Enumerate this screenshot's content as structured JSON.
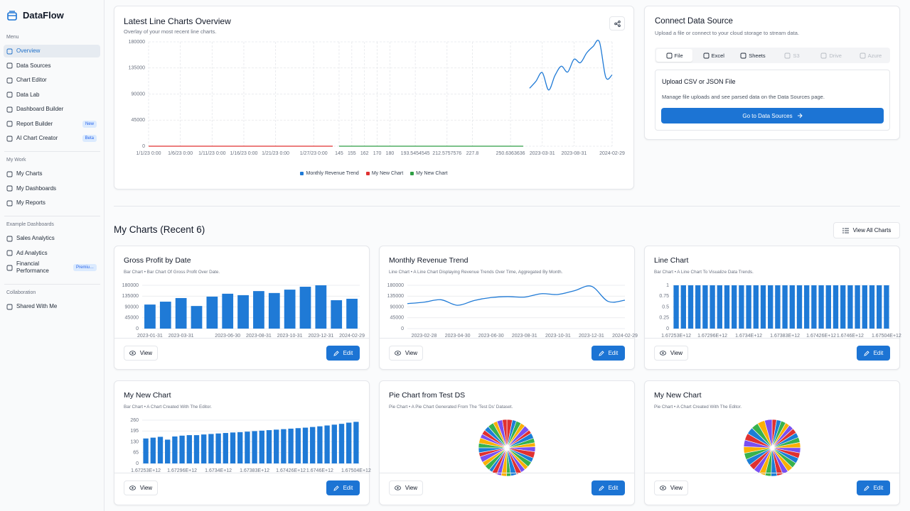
{
  "sidebar": {
    "brand": "DataFlow",
    "sections": [
      {
        "title": "Menu",
        "items": [
          {
            "label": "Overview",
            "active": true
          },
          {
            "label": "Data Sources"
          },
          {
            "label": "Chart Editor"
          },
          {
            "label": "Data Lab"
          },
          {
            "label": "Dashboard Builder"
          },
          {
            "label": "Report Builder",
            "badge": "New"
          },
          {
            "label": "AI Chart Creator",
            "badge": "Beta"
          }
        ]
      },
      {
        "title": "My Work",
        "items": [
          {
            "label": "My Charts"
          },
          {
            "label": "My Dashboards"
          },
          {
            "label": "My Reports"
          }
        ]
      },
      {
        "title": "Example Dashboards",
        "items": [
          {
            "label": "Sales Analytics"
          },
          {
            "label": "Ad Analytics"
          },
          {
            "label": "Financial Performance",
            "badge": "Premiu…"
          }
        ]
      },
      {
        "title": "Collaboration",
        "items": [
          {
            "label": "Shared With Me"
          }
        ]
      }
    ]
  },
  "overview": {
    "title": "Latest Line Charts Overview",
    "subtitle": "Overlay of your most recent line charts.",
    "chart": {
      "type": "line",
      "grid": true,
      "legend": "bottom",
      "ylim": [
        0,
        180000
      ],
      "yticks": [
        0,
        45000,
        90000,
        135000,
        180000
      ],
      "categories": [
        "1/1/23 0:00",
        null,
        null,
        null,
        null,
        "1/6/23 0:00",
        null,
        null,
        null,
        null,
        "1/11/23 0:00",
        null,
        null,
        null,
        null,
        "1/16/23 0:00",
        null,
        null,
        null,
        null,
        "1/21/23 0:00",
        null,
        null,
        null,
        null,
        null,
        "1/27/23 0:00",
        null,
        null,
        null,
        "145",
        null,
        "155",
        null,
        "162",
        null,
        "170",
        null,
        "180",
        null,
        null,
        null,
        "193.5454545",
        null,
        null,
        null,
        null,
        "212.5757576",
        null,
        null,
        null,
        "227.8",
        null,
        null,
        null,
        null,
        null,
        "250.6363636",
        null,
        null,
        null,
        null,
        "2023-03-31",
        null,
        null,
        null,
        null,
        "2023-08-31",
        null,
        null,
        null,
        null,
        null,
        "2024-02-29"
      ],
      "series": [
        {
          "name": "Monthly Revenue Trend",
          "color": "#1f7ad6",
          "values": [
            null,
            null,
            null,
            null,
            null,
            null,
            null,
            null,
            null,
            null,
            null,
            null,
            null,
            null,
            null,
            null,
            null,
            null,
            null,
            null,
            null,
            null,
            null,
            null,
            null,
            null,
            null,
            null,
            null,
            null,
            null,
            null,
            null,
            null,
            null,
            null,
            null,
            null,
            null,
            null,
            null,
            null,
            null,
            null,
            null,
            null,
            null,
            null,
            null,
            null,
            null,
            null,
            null,
            null,
            null,
            null,
            null,
            null,
            null,
            null,
            100000,
            112000,
            127000,
            97000,
            122000,
            138000,
            128000,
            150000,
            144000,
            161000,
            172000,
            180000,
            119000,
            123000
          ]
        },
        {
          "name": "My New Chart",
          "color": "#e03131",
          "values": [
            0,
            0,
            0,
            0,
            0,
            0,
            0,
            0,
            0,
            0,
            0,
            0,
            0,
            0,
            0,
            0,
            0,
            0,
            0,
            0,
            0,
            0,
            0,
            0,
            0,
            0,
            0,
            0,
            0,
            0,
            null,
            null,
            null,
            null,
            null,
            null,
            null,
            null,
            null,
            null,
            null,
            null,
            null,
            null,
            null,
            null,
            null,
            null,
            null,
            null,
            null,
            null,
            null,
            null,
            null,
            null,
            null,
            null,
            null,
            null,
            null,
            null,
            null,
            null,
            null,
            null,
            null,
            null,
            null,
            null,
            null,
            null,
            null,
            null
          ]
        },
        {
          "name": "My New Chart",
          "color": "#2f9e44",
          "values": [
            null,
            null,
            null,
            null,
            null,
            null,
            null,
            null,
            null,
            null,
            null,
            null,
            null,
            null,
            null,
            null,
            null,
            null,
            null,
            null,
            null,
            null,
            null,
            null,
            null,
            null,
            null,
            null,
            null,
            null,
            0,
            0,
            0,
            0,
            0,
            0,
            0,
            0,
            0,
            0,
            0,
            0,
            0,
            0,
            0,
            0,
            0,
            0,
            0,
            0,
            0,
            0,
            0,
            0,
            0,
            0,
            0,
            0,
            0,
            0,
            null,
            null,
            null,
            null,
            null,
            null,
            null,
            null,
            null,
            null,
            null,
            null,
            null,
            null
          ]
        }
      ]
    }
  },
  "connect": {
    "title": "Connect Data Source",
    "subtitle": "Upload a file or connect to your cloud storage to stream data.",
    "tabs": [
      {
        "label": "File",
        "active": true
      },
      {
        "label": "Excel"
      },
      {
        "label": "Sheets"
      },
      {
        "label": "S3",
        "disabled": true
      },
      {
        "label": "Drive",
        "disabled": true
      },
      {
        "label": "Azure",
        "disabled": true
      }
    ],
    "panel": {
      "title": "Upload CSV or JSON File",
      "text": "Manage file uploads and see parsed data on the Data Sources page.",
      "button": "Go to Data Sources"
    }
  },
  "my_charts": {
    "title": "My Charts (Recent 6)",
    "view_all": "View All Charts",
    "cards": [
      {
        "title": "Gross Profit by Date",
        "subtitle": "Bar Chart • Bar Chart Of Gross Profit Over Date.",
        "actions": [
          "View",
          "Edit"
        ],
        "chart": {
          "type": "bar",
          "color": "#1f7ad6",
          "ylim": [
            0,
            180000
          ],
          "yticks": [
            0,
            45000,
            90000,
            135000,
            180000
          ],
          "categories": [
            "2023-01-31",
            null,
            "2023-03-31",
            null,
            null,
            "2023-06-30",
            null,
            "2023-08-31",
            null,
            "2023-10-31",
            null,
            "2023-12-31",
            null,
            "2024-02-29"
          ],
          "values": [
            100000,
            112000,
            127000,
            94000,
            133000,
            145000,
            139000,
            156000,
            148000,
            162000,
            174000,
            180000,
            118000,
            124000
          ]
        }
      },
      {
        "title": "Monthly Revenue Trend",
        "subtitle": "Line Chart • A Line Chart Displaying Revenue Trends Over Time, Aggregated By Month.",
        "actions": [
          "View",
          "Edit"
        ],
        "chart": {
          "type": "line",
          "color": "#1f7ad6",
          "ylim": [
            0,
            180000
          ],
          "yticks": [
            0,
            45000,
            90000,
            135000,
            180000
          ],
          "categories": [
            null,
            "2023-02-28",
            null,
            "2023-04-30",
            null,
            "2023-06-30",
            null,
            "2023-08-31",
            null,
            "2023-10-31",
            null,
            "2023-12-31",
            null,
            "2024-02-29"
          ],
          "values": [
            104000,
            110000,
            120000,
            97000,
            117000,
            129000,
            133000,
            131000,
            145000,
            142000,
            158000,
            176000,
            113000,
            118000
          ]
        }
      },
      {
        "title": "Line Chart",
        "subtitle": "Bar Chart • A Line Chart To Visualize Data Trends.",
        "actions": [
          "View",
          "Edit"
        ],
        "chart": {
          "type": "bar",
          "color": "#1f7ad6",
          "ylim": [
            0,
            1
          ],
          "yticks": [
            0,
            0.25,
            0.5,
            0.75,
            1
          ],
          "categories": [
            "1.67253E+12",
            null,
            null,
            null,
            null,
            "1.67296E+12",
            null,
            null,
            null,
            null,
            "1.6734E+12",
            null,
            null,
            null,
            null,
            "1.67383E+12",
            null,
            null,
            null,
            null,
            "1.67426E+12",
            null,
            null,
            null,
            "1.6746E+12",
            null,
            null,
            null,
            null,
            "1.67504E+12"
          ],
          "values": [
            1,
            1,
            1,
            1,
            1,
            1,
            1,
            1,
            1,
            1,
            1,
            1,
            1,
            1,
            1,
            1,
            1,
            1,
            1,
            1,
            1,
            1,
            1,
            1,
            1,
            1,
            1,
            1,
            1,
            1
          ]
        }
      },
      {
        "title": "My New Chart",
        "subtitle": "Bar Chart • A Chart Created With The Editor.",
        "actions": [
          "View",
          "Edit"
        ],
        "chart": {
          "type": "bar",
          "color": "#1f7ad6",
          "ylim": [
            0,
            260
          ],
          "yticks": [
            0,
            65,
            130,
            195,
            260
          ],
          "categories": [
            "1.67253E+12",
            null,
            null,
            null,
            null,
            "1.67296E+12",
            null,
            null,
            null,
            null,
            "1.6734E+12",
            null,
            null,
            null,
            null,
            "1.67383E+12",
            null,
            null,
            null,
            null,
            "1.67426E+12",
            null,
            null,
            null,
            "1.6746E+12",
            null,
            null,
            null,
            null,
            "1.67504E+12"
          ],
          "values": [
            150,
            155,
            160,
            143,
            162,
            167,
            170,
            170,
            174,
            177,
            180,
            183,
            186,
            188,
            191,
            194,
            197,
            200,
            203,
            206,
            209,
            212,
            215,
            219,
            223,
            228,
            233,
            238,
            245,
            250
          ]
        }
      },
      {
        "title": "Pie Chart from Test DS",
        "subtitle": "Pie Chart • A Pie Chart Generated From The 'Test Ds' Dataset.",
        "actions": [
          "View",
          "Edit"
        ],
        "chart": {
          "type": "pie",
          "colors": [
            "#e03131",
            "#1c7ed6",
            "#37b24d",
            "#fab005",
            "#7950f2"
          ],
          "values": [
            12,
            9,
            11,
            10,
            13,
            8,
            12,
            10,
            9,
            11,
            14,
            10,
            12,
            9,
            10,
            11,
            13,
            9,
            12,
            10,
            11,
            8,
            12,
            10,
            13,
            9,
            11,
            10,
            12,
            9,
            10,
            11,
            13,
            9,
            12,
            10
          ]
        }
      },
      {
        "title": "My New Chart",
        "subtitle": "Pie Chart • A Chart Created With The Editor.",
        "actions": [
          "View",
          "Edit"
        ],
        "chart": {
          "type": "pie",
          "colors": [
            "#e03131",
            "#1c7ed6",
            "#37b24d",
            "#fab005",
            "#7950f2"
          ],
          "values": [
            150,
            155,
            160,
            143,
            162,
            167,
            170,
            170,
            174,
            177,
            180,
            183,
            186,
            188,
            191,
            194,
            197,
            200,
            203,
            206,
            209,
            212,
            215,
            219,
            223,
            228,
            233,
            238,
            245,
            250
          ]
        }
      }
    ]
  }
}
